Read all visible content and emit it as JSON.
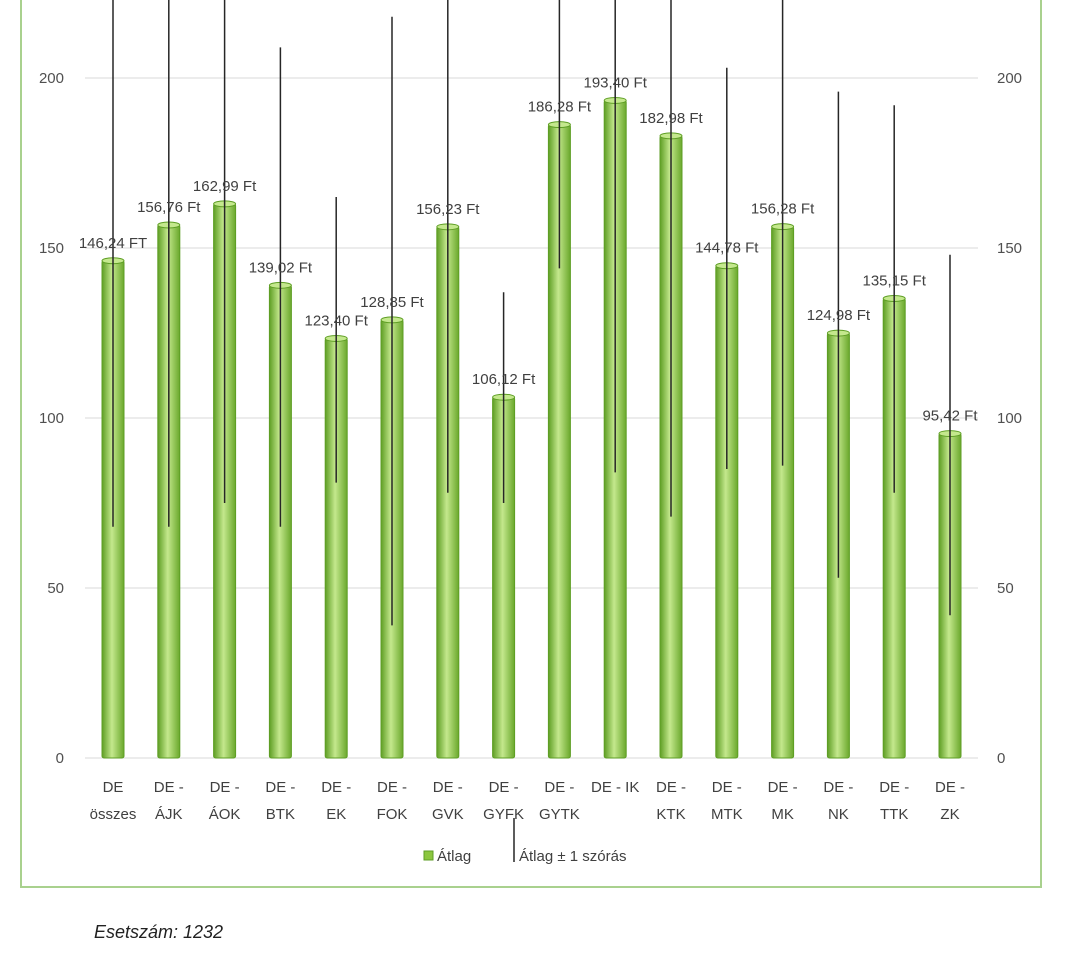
{
  "chart_data": {
    "type": "bar",
    "categories": [
      [
        "DE",
        "összes"
      ],
      [
        "DE -",
        "ÁJK"
      ],
      [
        "DE -",
        "ÁOK"
      ],
      [
        "DE -",
        "BTK"
      ],
      [
        "DE -",
        "EK"
      ],
      [
        "DE -",
        "FOK"
      ],
      [
        "DE -",
        "GVK"
      ],
      [
        "DE -",
        "GYFK"
      ],
      [
        "DE -",
        "GYTK"
      ],
      [
        "DE - IK"
      ],
      [
        "DE -",
        "KTK"
      ],
      [
        "DE -",
        "MTK"
      ],
      [
        "DE -",
        "MK"
      ],
      [
        "DE -",
        "NK"
      ],
      [
        "DE -",
        "TTK"
      ],
      [
        "DE -",
        "ZK"
      ]
    ],
    "series": [
      {
        "name": "Átlag",
        "values": [
          146.24,
          156.76,
          162.99,
          139.02,
          123.4,
          128.85,
          156.23,
          106.12,
          186.28,
          193.4,
          182.98,
          144.78,
          156.28,
          124.98,
          135.15,
          95.42
        ],
        "labels": [
          "146,24 FT",
          "156,76 Ft",
          "162,99 Ft",
          "139,02 Ft",
          "123,40 Ft",
          "128,85 Ft",
          "156,23 Ft",
          "106,12 Ft",
          "186,28 Ft",
          "193,40 Ft",
          "182,98 Ft",
          "144,78 Ft",
          "156,28 Ft",
          "124,98 Ft",
          "135,15 Ft",
          "95,42 Ft"
        ]
      }
    ],
    "error_bars": {
      "name": "Átlag ± 1 szórás",
      "low": [
        68,
        68,
        75,
        68,
        81,
        39,
        78,
        75,
        144,
        84,
        71,
        85,
        86,
        53,
        78,
        42
      ],
      "high": [
        235,
        235,
        235,
        209,
        165,
        218,
        235,
        137,
        235,
        235,
        235,
        203,
        235,
        196,
        192,
        148
      ]
    },
    "ylim": [
      0,
      235
    ],
    "yticks": [
      0,
      50,
      100,
      150,
      200
    ],
    "secondary_yaxis": true,
    "grid": true,
    "legend_position": "bottom",
    "title": "",
    "xlabel": "",
    "ylabel": "",
    "colors": {
      "bar": "#8cc63f",
      "bar_light": "#c4e88d",
      "bar_dark": "#5e9e24",
      "grid": "#d9d9d9",
      "error": "#262626",
      "frame": "#a9d18e"
    }
  },
  "footnote": "Esetszám: 1232"
}
